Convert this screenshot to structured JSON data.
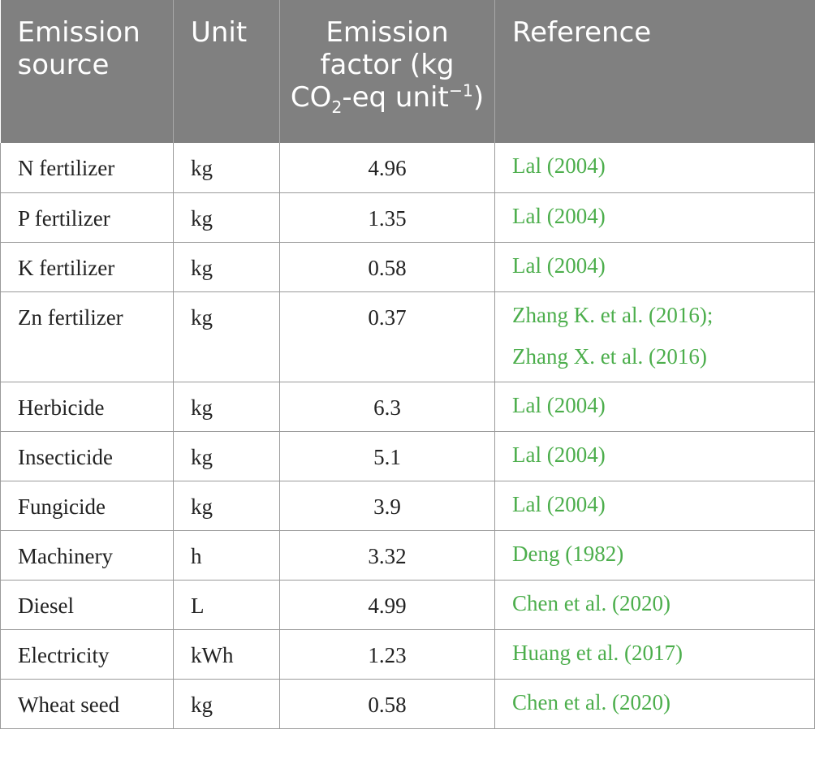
{
  "table": {
    "headers": {
      "source": "Emission source",
      "unit": "Unit",
      "factor_main": "Emission factor (kg CO",
      "factor_sub": "2",
      "factor_mid": "-eq unit",
      "factor_sup": "−1",
      "factor_end": ")",
      "reference": "Reference"
    },
    "rows": [
      {
        "source": "N fertilizer",
        "unit": "kg",
        "factor": "4.96",
        "reference": "Lal (2004)"
      },
      {
        "source": "P fertilizer",
        "unit": "kg",
        "factor": "1.35",
        "reference": "Lal (2004)"
      },
      {
        "source": "K fertilizer",
        "unit": "kg",
        "factor": "0.58",
        "reference": "Lal (2004)"
      },
      {
        "source": "Zn fertilizer",
        "unit": "kg",
        "factor": "0.37",
        "reference": "Zhang K. et al. (2016);",
        "reference2": "Zhang X. et al. (2016)"
      },
      {
        "source": "Herbicide",
        "unit": "kg",
        "factor": "6.3",
        "reference": "Lal (2004)"
      },
      {
        "source": "Insecticide",
        "unit": "kg",
        "factor": "5.1",
        "reference": "Lal (2004)"
      },
      {
        "source": "Fungicide",
        "unit": "kg",
        "factor": "3.9",
        "reference": "Lal (2004)"
      },
      {
        "source": "Machinery",
        "unit": "h",
        "factor": "3.32",
        "reference": "Deng (1982)"
      },
      {
        "source": "Diesel",
        "unit": "L",
        "factor": "4.99",
        "reference": "Chen et al. (2020)"
      },
      {
        "source": "Electricity",
        "unit": "kWh",
        "factor": "1.23",
        "reference": "Huang et al. (2017)"
      },
      {
        "source": "Wheat seed",
        "unit": "kg",
        "factor": "0.58",
        "reference": "Chen et al. (2020)"
      }
    ]
  },
  "colors": {
    "header_bg": "#808080",
    "header_text": "#ffffff",
    "reference_link": "#4cae4c",
    "grid": "#9a9a9a"
  }
}
